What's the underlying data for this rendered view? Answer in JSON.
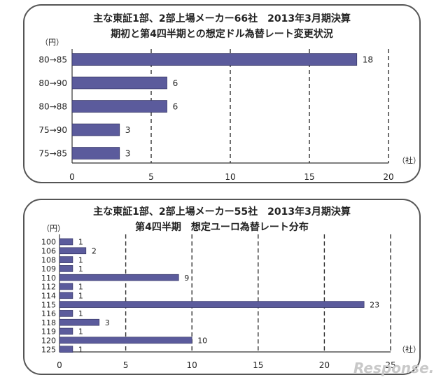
{
  "chart_data": [
    {
      "type": "bar",
      "orientation": "horizontal",
      "title": "主な東証1部、2部上場メーカー66社　2013年3月期決算",
      "subtitle": "期初と第4四半期との想定ドル為替レート変更状況",
      "ylabel": "（円）",
      "xlabel": "（社）",
      "categories": [
        "80→85",
        "80→90",
        "80→88",
        "75→90",
        "75→85"
      ],
      "values": [
        18,
        6,
        6,
        3,
        3
      ],
      "xlim": [
        0,
        20
      ],
      "xticks": [
        0,
        5,
        10,
        15,
        20
      ],
      "grid": "vertical-dashed",
      "bar_color": "#5b5b9c"
    },
    {
      "type": "bar",
      "orientation": "horizontal",
      "title": "主な東証1部、2部上場メーカー55社　2013年3月期決算",
      "subtitle": "第4四半期　想定ユーロ為替レート分布",
      "ylabel": "（円）",
      "xlabel": "（社）",
      "categories": [
        "100",
        "106",
        "108",
        "109",
        "110",
        "112",
        "114",
        "115",
        "116",
        "118",
        "119",
        "120",
        "125"
      ],
      "values": [
        1,
        2,
        1,
        1,
        9,
        1,
        1,
        23,
        1,
        3,
        1,
        10,
        1
      ],
      "xlim": [
        0,
        25
      ],
      "xticks": [
        0,
        5,
        10,
        15,
        20,
        25
      ],
      "grid": "vertical-dashed",
      "bar_color": "#5b5b9c"
    }
  ],
  "watermark": "Response."
}
